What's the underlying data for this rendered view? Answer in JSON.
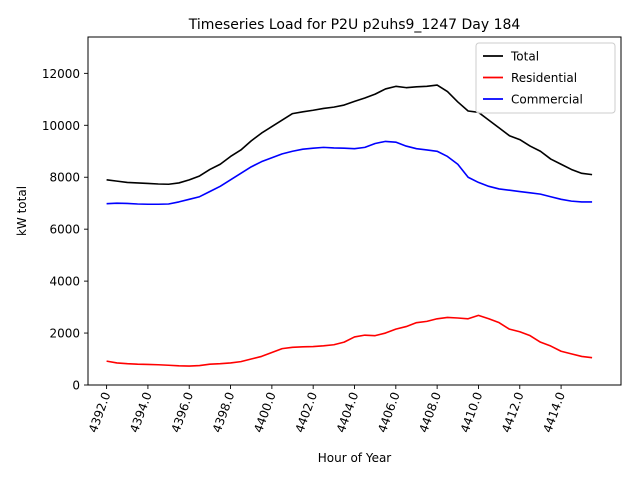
{
  "chart_data": {
    "type": "line",
    "title": "Timeseries Load for P2U p2uhs9_1247  Day 184",
    "xlabel": "Hour of Year",
    "ylabel": "kW total",
    "xlim": [
      4391.1,
      4416.9
    ],
    "ylim": [
      0,
      13400
    ],
    "xticks": [
      4392,
      4394,
      4396,
      4398,
      4400,
      4402,
      4404,
      4406,
      4408,
      4410,
      4412,
      4414
    ],
    "xtick_labels": [
      "4392.0",
      "4394.0",
      "4396.0",
      "4398.0",
      "4400.0",
      "4402.0",
      "4404.0",
      "4406.0",
      "4408.0",
      "4410.0",
      "4412.0",
      "4414.0"
    ],
    "yticks": [
      0,
      2000,
      4000,
      6000,
      8000,
      10000,
      12000
    ],
    "ytick_labels": [
      "0",
      "2000",
      "4000",
      "6000",
      "8000",
      "10000",
      "12000"
    ],
    "grid": false,
    "legend_position": "upper right",
    "x": [
      4392.0,
      4392.5,
      4393.0,
      4393.5,
      4394.0,
      4394.5,
      4395.0,
      4395.5,
      4396.0,
      4396.5,
      4397.0,
      4397.5,
      4398.0,
      4398.5,
      4399.0,
      4399.5,
      4400.0,
      4400.5,
      4401.0,
      4401.5,
      4402.0,
      4402.5,
      4403.0,
      4403.5,
      4404.0,
      4404.5,
      4405.0,
      4405.5,
      4406.0,
      4406.5,
      4407.0,
      4407.5,
      4408.0,
      4408.5,
      4409.0,
      4409.5,
      4410.0,
      4410.5,
      4411.0,
      4411.5,
      4412.0,
      4412.5,
      4413.0,
      4413.5,
      4414.0,
      4414.5,
      4415.0,
      4415.5
    ],
    "series": [
      {
        "name": "Total",
        "color": "#000000",
        "values": [
          7900,
          7850,
          7800,
          7780,
          7760,
          7740,
          7730,
          7780,
          7900,
          8050,
          8300,
          8500,
          8800,
          9050,
          9400,
          9700,
          9950,
          10200,
          10450,
          10520,
          10580,
          10650,
          10700,
          10780,
          10920,
          11050,
          11200,
          11400,
          11500,
          11450,
          11480,
          11500,
          11550,
          11300,
          10900,
          10550,
          10500,
          10200,
          9900,
          9600,
          9450,
          9200,
          9000,
          8700,
          8500,
          8300,
          8150,
          8100
        ]
      },
      {
        "name": "Residential",
        "color": "#ff0000",
        "values": [
          920,
          850,
          820,
          800,
          790,
          780,
          760,
          740,
          730,
          750,
          800,
          820,
          850,
          900,
          1000,
          1100,
          1250,
          1400,
          1450,
          1470,
          1480,
          1510,
          1550,
          1650,
          1850,
          1920,
          1900,
          2000,
          2150,
          2250,
          2400,
          2450,
          2550,
          2600,
          2580,
          2550,
          2680,
          2550,
          2400,
          2150,
          2050,
          1900,
          1650,
          1500,
          1300,
          1200,
          1100,
          1050
        ]
      },
      {
        "name": "Commercial",
        "color": "#0000ff",
        "values": [
          6980,
          7000,
          6990,
          6970,
          6960,
          6960,
          6970,
          7050,
          7150,
          7250,
          7450,
          7650,
          7900,
          8150,
          8400,
          8600,
          8750,
          8900,
          9000,
          9080,
          9120,
          9150,
          9130,
          9120,
          9100,
          9150,
          9300,
          9380,
          9350,
          9200,
          9100,
          9050,
          9000,
          8800,
          8500,
          8000,
          7800,
          7650,
          7550,
          7500,
          7450,
          7400,
          7350,
          7250,
          7150,
          7080,
          7050,
          7050
        ]
      }
    ]
  }
}
